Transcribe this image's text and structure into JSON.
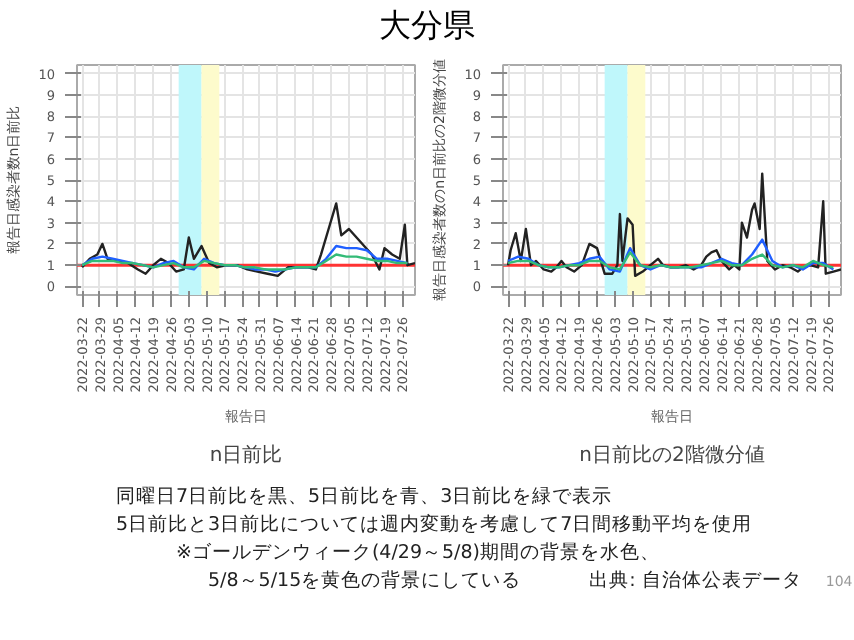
{
  "chart_data": [
    {
      "type": "line",
      "title": "n日前比",
      "xlabel": "報告日",
      "ylabel": "報告日感染者数n日前比",
      "xlim": [
        "2022-03-20",
        "2022-07-31"
      ],
      "xticks": [
        "2022-03-22",
        "2022-03-29",
        "2022-04-05",
        "2022-04-12",
        "2022-04-19",
        "2022-04-26",
        "2022-05-03",
        "2022-05-10",
        "2022-05-17",
        "2022-05-24",
        "2022-05-31",
        "2022-06-07",
        "2022-06-14",
        "2022-06-21",
        "2022-06-28",
        "2022-07-05",
        "2022-07-12",
        "2022-07-19",
        "2022-07-26"
      ],
      "ylim": [
        -0.4,
        10.4
      ],
      "yticks": [
        0,
        1,
        2,
        3,
        4,
        5,
        6,
        7,
        8,
        9,
        10
      ],
      "grid": true,
      "x": [
        "2022-03-22",
        "2022-03-26",
        "2022-03-30",
        "2022-04-03",
        "2022-04-07",
        "2022-04-11",
        "2022-04-15",
        "2022-04-19",
        "2022-04-23",
        "2022-04-27",
        "2022-05-01",
        "2022-05-05",
        "2022-05-09",
        "2022-05-13",
        "2022-05-17",
        "2022-05-21",
        "2022-05-25",
        "2022-05-29",
        "2022-06-02",
        "2022-06-06",
        "2022-06-10",
        "2022-06-14",
        "2022-06-18",
        "2022-06-22",
        "2022-06-26",
        "2022-06-30",
        "2022-07-04",
        "2022-07-08",
        "2022-07-12",
        "2022-07-16",
        "2022-07-20",
        "2022-07-24",
        "2022-07-28"
      ],
      "series": [
        {
          "color": "#222222",
          "x": [
            "2022-03-22",
            "2022-03-25",
            "2022-03-28",
            "2022-03-30",
            "2022-04-01",
            "2022-04-05",
            "2022-04-09",
            "2022-04-13",
            "2022-04-16",
            "2022-04-19",
            "2022-04-22",
            "2022-04-25",
            "2022-04-28",
            "2022-05-01",
            "2022-05-03",
            "2022-05-05",
            "2022-05-08",
            "2022-05-11",
            "2022-05-14",
            "2022-05-18",
            "2022-05-22",
            "2022-05-26",
            "2022-05-30",
            "2022-06-03",
            "2022-06-07",
            "2022-06-11",
            "2022-06-15",
            "2022-06-19",
            "2022-06-22",
            "2022-06-24",
            "2022-06-27",
            "2022-06-30",
            "2022-07-02",
            "2022-07-05",
            "2022-07-08",
            "2022-07-11",
            "2022-07-14",
            "2022-07-17",
            "2022-07-19",
            "2022-07-22",
            "2022-07-25",
            "2022-07-27",
            "2022-07-28",
            "2022-07-31"
          ],
          "values": [
            0.9,
            1.3,
            1.5,
            2.0,
            1.3,
            1.2,
            1.1,
            0.8,
            0.6,
            1.0,
            1.3,
            1.1,
            0.7,
            0.8,
            2.3,
            1.3,
            1.9,
            1.1,
            0.9,
            1.0,
            1.0,
            0.8,
            0.7,
            0.6,
            0.5,
            0.9,
            0.9,
            0.9,
            0.8,
            1.5,
            2.7,
            3.9,
            2.4,
            2.7,
            2.3,
            1.9,
            1.5,
            0.8,
            1.8,
            1.5,
            1.3,
            2.9,
            1.0,
            1.1
          ]
        },
        {
          "color": "#1f5fff",
          "values": [
            1.0,
            1.3,
            1.4,
            1.3,
            1.2,
            1.1,
            1.0,
            0.9,
            1.1,
            1.2,
            0.9,
            0.8,
            1.3,
            1.1,
            1.0,
            1.0,
            0.9,
            0.8,
            0.8,
            0.7,
            0.8,
            0.9,
            0.9,
            0.9,
            1.3,
            1.9,
            1.8,
            1.8,
            1.7,
            1.3,
            1.3,
            1.2,
            1.1
          ]
        },
        {
          "color": "#33bb77",
          "values": [
            1.0,
            1.2,
            1.2,
            1.2,
            1.1,
            1.1,
            1.0,
            0.9,
            1.0,
            1.1,
            0.9,
            0.9,
            1.2,
            1.1,
            1.0,
            1.0,
            0.9,
            0.9,
            0.8,
            0.8,
            0.8,
            0.9,
            0.9,
            0.9,
            1.2,
            1.5,
            1.4,
            1.4,
            1.3,
            1.2,
            1.2,
            1.1,
            1.1
          ]
        }
      ],
      "ref_lines": [
        {
          "axis": "y",
          "value": 1,
          "color": "#ff3333"
        }
      ],
      "bands": [
        {
          "axis": "x",
          "from": "2022-04-29",
          "to": "2022-05-08",
          "color": "#bff7fb"
        },
        {
          "axis": "x",
          "from": "2022-05-08",
          "to": "2022-05-15",
          "color": "#fdfbcc"
        }
      ]
    },
    {
      "type": "line",
      "title": "n日前比の2階微分値",
      "xlabel": "報告日",
      "ylabel": "報告日感染者数のn日前比の2階微分値",
      "xlim": [
        "2022-03-20",
        "2022-07-31"
      ],
      "xticks": [
        "2022-03-22",
        "2022-03-29",
        "2022-04-05",
        "2022-04-12",
        "2022-04-19",
        "2022-04-26",
        "2022-05-03",
        "2022-05-10",
        "2022-05-17",
        "2022-05-24",
        "2022-05-31",
        "2022-06-07",
        "2022-06-14",
        "2022-06-21",
        "2022-06-28",
        "2022-07-05",
        "2022-07-12",
        "2022-07-19",
        "2022-07-26"
      ],
      "ylim": [
        -0.4,
        10.4
      ],
      "yticks": [
        0,
        1,
        2,
        3,
        4,
        5,
        6,
        7,
        8,
        9,
        10
      ],
      "grid": true,
      "x": [
        "2022-03-22",
        "2022-03-26",
        "2022-03-30",
        "2022-04-03",
        "2022-04-07",
        "2022-04-11",
        "2022-04-15",
        "2022-04-19",
        "2022-04-23",
        "2022-04-27",
        "2022-05-01",
        "2022-05-05",
        "2022-05-09",
        "2022-05-13",
        "2022-05-17",
        "2022-05-21",
        "2022-05-25",
        "2022-05-29",
        "2022-06-02",
        "2022-06-06",
        "2022-06-10",
        "2022-06-14",
        "2022-06-18",
        "2022-06-22",
        "2022-06-26",
        "2022-06-30",
        "2022-07-04",
        "2022-07-08",
        "2022-07-12",
        "2022-07-16",
        "2022-07-20",
        "2022-07-24",
        "2022-07-28"
      ],
      "series": [
        {
          "color": "#222222",
          "x": [
            "2022-03-22",
            "2022-03-23",
            "2022-03-25",
            "2022-03-27",
            "2022-03-29",
            "2022-03-31",
            "2022-04-02",
            "2022-04-05",
            "2022-04-08",
            "2022-04-10",
            "2022-04-12",
            "2022-04-14",
            "2022-04-17",
            "2022-04-20",
            "2022-04-23",
            "2022-04-26",
            "2022-04-29",
            "2022-05-02",
            "2022-05-04",
            "2022-05-05",
            "2022-05-06",
            "2022-05-08",
            "2022-05-10",
            "2022-05-11",
            "2022-05-14",
            "2022-05-17",
            "2022-05-20",
            "2022-05-22",
            "2022-05-25",
            "2022-05-28",
            "2022-05-31",
            "2022-06-03",
            "2022-06-06",
            "2022-06-08",
            "2022-06-10",
            "2022-06-12",
            "2022-06-14",
            "2022-06-17",
            "2022-06-19",
            "2022-06-21",
            "2022-06-22",
            "2022-06-24",
            "2022-06-26",
            "2022-06-27",
            "2022-06-29",
            "2022-06-30",
            "2022-07-02",
            "2022-07-05",
            "2022-07-08",
            "2022-07-11",
            "2022-07-14",
            "2022-07-16",
            "2022-07-19",
            "2022-07-22",
            "2022-07-24",
            "2022-07-25",
            "2022-07-28",
            "2022-07-31"
          ],
          "values": [
            1.0,
            1.7,
            2.5,
            1.2,
            2.7,
            1.0,
            1.2,
            0.8,
            0.7,
            0.9,
            1.2,
            0.9,
            0.7,
            1.0,
            2.0,
            1.8,
            0.6,
            0.6,
            1.0,
            3.4,
            1.2,
            3.2,
            2.9,
            0.5,
            0.7,
            1.0,
            1.3,
            1.0,
            0.9,
            0.9,
            1.0,
            0.8,
            1.0,
            1.4,
            1.6,
            1.7,
            1.2,
            0.8,
            1.0,
            0.8,
            3.0,
            2.3,
            3.6,
            3.9,
            2.7,
            5.3,
            1.2,
            0.8,
            1.0,
            0.9,
            0.7,
            0.9,
            1.0,
            0.9,
            4.0,
            0.6,
            0.7,
            0.8
          ]
        },
        {
          "color": "#1f5fff",
          "values": [
            1.2,
            1.4,
            1.3,
            1.0,
            0.9,
            0.9,
            1.0,
            1.1,
            1.3,
            1.4,
            0.8,
            0.7,
            1.8,
            1.0,
            0.8,
            1.0,
            0.9,
            0.9,
            0.9,
            0.9,
            1.1,
            1.3,
            1.1,
            1.0,
            1.5,
            2.2,
            1.2,
            0.9,
            1.0,
            0.8,
            1.1,
            1.1,
            0.8
          ]
        },
        {
          "color": "#33bb77",
          "values": [
            1.1,
            1.2,
            1.2,
            1.0,
            0.9,
            0.9,
            1.0,
            1.0,
            1.2,
            1.2,
            0.9,
            0.8,
            1.6,
            1.0,
            0.9,
            1.0,
            0.9,
            0.9,
            0.9,
            1.0,
            1.1,
            1.2,
            1.0,
            1.0,
            1.3,
            1.5,
            1.0,
            0.9,
            1.0,
            0.9,
            1.2,
            1.0,
            0.9
          ]
        }
      ],
      "ref_lines": [
        {
          "axis": "y",
          "value": 1,
          "color": "#ff3333"
        }
      ],
      "bands": [
        {
          "axis": "x",
          "from": "2022-04-29",
          "to": "2022-05-08",
          "color": "#bff7fb"
        },
        {
          "axis": "x",
          "from": "2022-05-08",
          "to": "2022-05-15",
          "color": "#fdfbcc"
        }
      ]
    },
    {
      "type": "other",
      "title": "大分県",
      "annotations": [
        "同曜日7日前比を黒、5日前比を青、3日前比を緑で表示",
        "5日前比と3日前比については週内変動を考慮して7日間移動平均を使用",
        "※ゴールデンウィーク(4/29～5/8)期間の背景を水色、",
        "5/8～5/15を黄色の背景にしている",
        "出典: 自治体公表データ",
        "104"
      ]
    }
  ]
}
